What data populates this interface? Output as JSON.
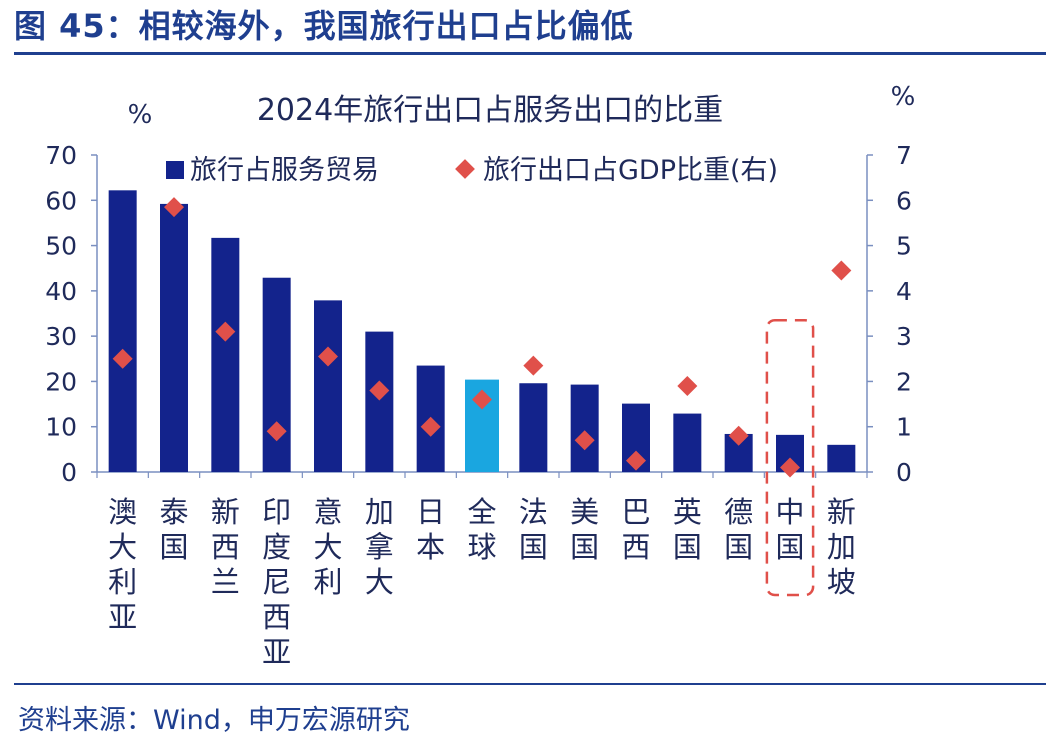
{
  "figure": {
    "title": "图 45：相较海外，我国旅行出口占比偏低",
    "source": "资料来源：Wind，申万宏源研究"
  },
  "chart_data": {
    "type": "bar",
    "title": "2024年旅行出口占服务出口的比重",
    "ylabel_left": "%",
    "ylabel_right": "%",
    "ylim_left": [
      0,
      70
    ],
    "ylim_right": [
      0,
      7
    ],
    "yticks_left": [
      0,
      10,
      20,
      30,
      40,
      50,
      60,
      70
    ],
    "yticks_right": [
      0,
      1,
      2,
      3,
      4,
      5,
      6,
      7
    ],
    "grid": false,
    "legend_position": "top",
    "categories": [
      "澳大利亚",
      "泰国",
      "新西兰",
      "印度尼西亚",
      "意大利",
      "加拿大",
      "日本",
      "全球",
      "法国",
      "美国",
      "巴西",
      "英国",
      "德国",
      "中国",
      "新加坡"
    ],
    "series": [
      {
        "name": "旅行占服务贸易",
        "kind": "bar",
        "axis": "left",
        "color": "#13238c",
        "highlight": {
          "category": "全球",
          "color": "#1aa6e0"
        },
        "values": [
          62.2,
          59.2,
          51.7,
          42.9,
          37.9,
          31.0,
          23.5,
          20.4,
          19.6,
          19.3,
          15.1,
          12.9,
          8.4,
          8.2,
          6.0
        ]
      },
      {
        "name": "旅行出口占GDP比重(右)",
        "kind": "scatter",
        "marker": "diamond",
        "axis": "right",
        "color": "#e0504a",
        "values": [
          2.5,
          5.85,
          3.1,
          0.9,
          2.55,
          1.8,
          1.0,
          1.6,
          2.35,
          0.7,
          0.25,
          1.9,
          0.8,
          0.1,
          4.45
        ]
      }
    ],
    "annotation": {
      "type": "dashed-box",
      "category": "中国",
      "color": "#e0504a"
    }
  }
}
